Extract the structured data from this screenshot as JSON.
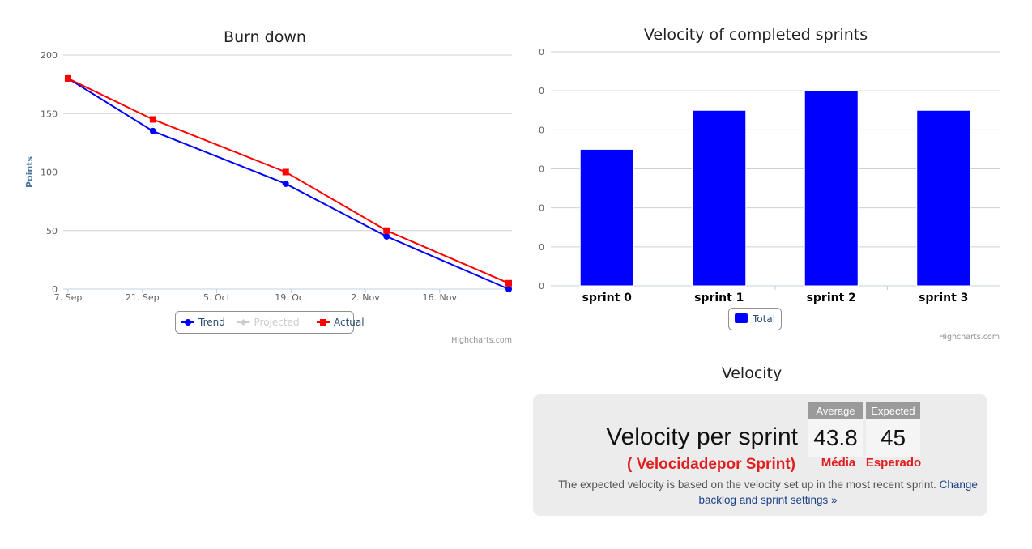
{
  "chart_data": [
    {
      "type": "line",
      "title": "Burn down",
      "ylabel": "Points",
      "ylim": [
        0,
        200
      ],
      "y_ticks": [
        "0",
        "50",
        "100",
        "150",
        "200"
      ],
      "xlim": [
        "2015-09-07",
        "2015-11-29"
      ],
      "x_ticks": [
        {
          "date": "2015-09-07",
          "label": "7. Sep"
        },
        {
          "date": "2015-09-21",
          "label": "21. Sep"
        },
        {
          "date": "2015-10-05",
          "label": "5. Oct"
        },
        {
          "date": "2015-10-19",
          "label": "19. Oct"
        },
        {
          "date": "2015-11-02",
          "label": "2. Nov"
        },
        {
          "date": "2015-11-16",
          "label": "16. Nov"
        }
      ],
      "grid": true,
      "legend_position": "bottom-center",
      "series": [
        {
          "name": "Trend",
          "color": "#0000ff",
          "marker": "circle",
          "points": [
            [
              "2015-09-07",
              180
            ],
            [
              "2015-09-23",
              135
            ],
            [
              "2015-10-18",
              90
            ],
            [
              "2015-11-06",
              45
            ],
            [
              "2015-11-29",
              0
            ]
          ]
        },
        {
          "name": "Projected",
          "color": "#cccccc",
          "marker": "diamond",
          "hidden": true,
          "points": []
        },
        {
          "name": "Actual",
          "color": "#ff0000",
          "marker": "square",
          "points": [
            [
              "2015-09-07",
              180
            ],
            [
              "2015-09-23",
              145
            ],
            [
              "2015-10-18",
              100
            ],
            [
              "2015-11-06",
              50
            ],
            [
              "2015-11-29",
              5
            ]
          ]
        }
      ],
      "credits": "Highcharts.com"
    },
    {
      "type": "bar",
      "title": "Velocity of completed sprints",
      "categories": [
        "sprint 0",
        "sprint 1",
        "sprint 2",
        "sprint 3"
      ],
      "y_tick_labels": [
        "0",
        "0",
        "0",
        "0",
        "0",
        "0",
        "0"
      ],
      "ylim": [
        0,
        60
      ],
      "series": [
        {
          "name": "Total",
          "color": "#0000ff",
          "values": [
            35,
            45,
            50,
            45
          ]
        }
      ],
      "grid": true,
      "legend_position": "bottom-center",
      "credits": "Highcharts.com"
    }
  ],
  "velocity": {
    "heading": "Velocity",
    "main_label": "Velocity per sprint",
    "sub_label": "( Velocidadepor Sprint)",
    "average_header": "Average",
    "average_value": "43.8",
    "average_label": "Média",
    "expected_header": "Expected",
    "expected_value": "45",
    "expected_label": "Esperado",
    "note": "The expected velocity is based on the velocity set up in the most recent sprint.",
    "link_text": "Change backlog and sprint settings »"
  }
}
